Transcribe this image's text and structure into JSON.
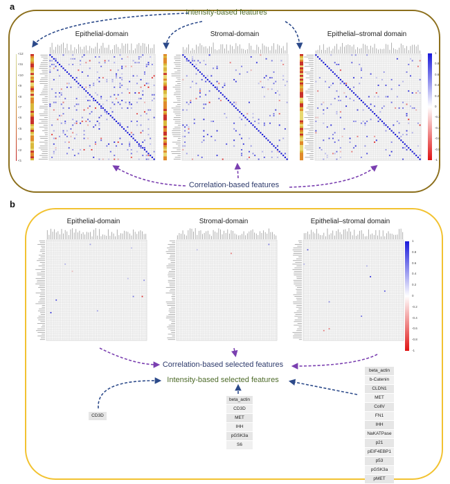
{
  "panels": {
    "a": {
      "letter": "a",
      "top_label": "Intensity-based features",
      "bottom_label": "Correlation-based features",
      "matrix_titles": [
        "Epithelial-domain",
        "Stromal-domain",
        "Epithelial–stromal domain"
      ],
      "intensity_scale_ticks": [
        "<12",
        "<11",
        "<10",
        "<9",
        "<8",
        "<7",
        "<6",
        "<5",
        "<3",
        "<2",
        "<1"
      ]
    },
    "b": {
      "letter": "b",
      "matrix_titles": [
        "Epithelial-domain",
        "Stromal-domain",
        "Epithelial–stromal domain"
      ],
      "correlation_label": "Correlation-based selected features",
      "intensity_label": "Intensity-based selected features",
      "feature_lists": {
        "epithelial": [
          "CD3D"
        ],
        "stromal": [
          "beta_actin",
          "CD3D",
          "MET",
          "IHH",
          "pGSK3a",
          "S6"
        ],
        "epithelial_stromal": [
          "beta_actin",
          "b-Catenin",
          "CLDN1",
          "MET",
          "CollV",
          "FN1",
          "IHH",
          "NaKATPase",
          "p21",
          "pEIF4EBP1",
          "p53",
          "pGSK3a",
          "pMET"
        ]
      }
    }
  },
  "colorbar": {
    "ticks": [
      "1",
      "0.8",
      "0.6",
      "0.4",
      "0.2",
      "0",
      "-0.2",
      "-0.4",
      "-0.6",
      "-0.8",
      "-1"
    ],
    "high_color": "#1a1adb",
    "mid_color": "#ffffff",
    "low_color": "#e01414"
  },
  "colors": {
    "frame_a": "#8c6f1c",
    "frame_b": "#f2c230",
    "intensity_arrow": "#2c4a8a",
    "correlation_arrow": "#7a3fb0",
    "intensity_text": "#4e6b2a",
    "correlation_text": "#2d3a6b"
  }
}
